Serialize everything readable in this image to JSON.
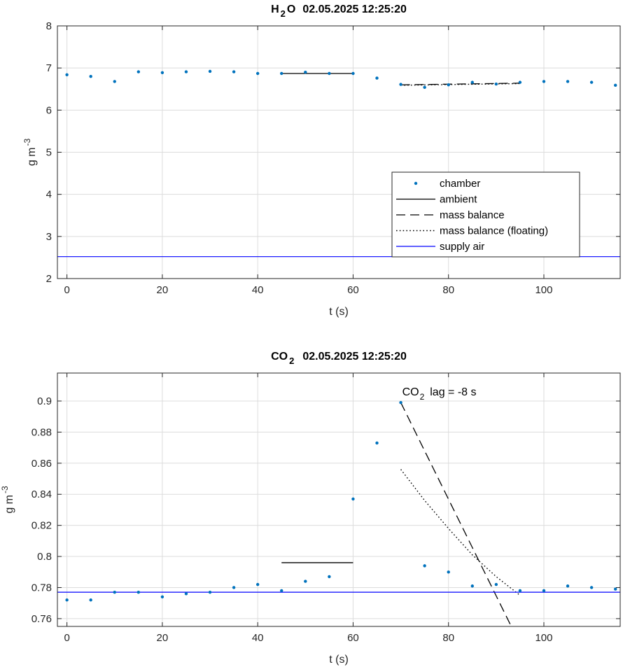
{
  "colors": {
    "chamber": "#0072BD",
    "supply_air": "#0000FF",
    "lines": "#000000",
    "grid": "#DCDCDC"
  },
  "chart_data": [
    {
      "type": "scatter",
      "title": {
        "species": "H",
        "subscript": "2",
        "suffix": "O",
        "timestamp": "02.05.2025 12:25:20"
      },
      "xlabel": "t (s)",
      "ylabel": {
        "base": "g m",
        "superscript": "-3"
      },
      "xlim": [
        -2,
        116
      ],
      "ylim": [
        2,
        8
      ],
      "xticks": [
        0,
        20,
        40,
        60,
        80,
        100
      ],
      "yticks": [
        2,
        3,
        4,
        5,
        6,
        7,
        8
      ],
      "grid": true,
      "legend": {
        "placement": "lower-right",
        "entries": [
          "chamber",
          "ambient",
          "mass balance",
          "mass balance (floating)",
          "supply air"
        ]
      },
      "series": [
        {
          "name": "chamber",
          "style": "dots",
          "x": [
            0,
            5,
            10,
            15,
            20,
            25,
            30,
            35,
            40,
            45,
            50,
            55,
            60,
            65,
            70,
            75,
            80,
            85,
            90,
            95,
            100,
            105,
            110,
            115
          ],
          "y": [
            6.84,
            6.8,
            6.68,
            6.91,
            6.89,
            6.91,
            6.92,
            6.91,
            6.87,
            6.87,
            6.9,
            6.87,
            6.87,
            6.76,
            6.61,
            6.54,
            6.6,
            6.66,
            6.62,
            6.66,
            6.68,
            6.68,
            6.66,
            6.59
          ]
        },
        {
          "name": "ambient",
          "style": "solid",
          "x": [
            45,
            60
          ],
          "y": [
            6.87,
            6.87
          ]
        },
        {
          "name": "mass balance",
          "style": "dashed",
          "x": [
            70,
            95
          ],
          "y": [
            6.6,
            6.64
          ]
        },
        {
          "name": "mass balance (floating)",
          "style": "dotted",
          "x": [
            70,
            95
          ],
          "y": [
            6.59,
            6.63
          ]
        },
        {
          "name": "supply air",
          "style": "solid-blue",
          "x": [
            -2,
            116
          ],
          "y": [
            2.52,
            2.52
          ]
        }
      ]
    },
    {
      "type": "scatter",
      "title": {
        "species": "CO",
        "subscript": "2",
        "suffix": "",
        "timestamp": "02.05.2025 12:25:20"
      },
      "xlabel": "t (s)",
      "ylabel": {
        "base": "g m",
        "superscript": "-3"
      },
      "xlim": [
        -2,
        116
      ],
      "ylim": [
        0.755,
        0.918
      ],
      "xticks": [
        0,
        20,
        40,
        60,
        80,
        100
      ],
      "yticks": [
        0.76,
        0.78,
        0.8,
        0.82,
        0.84,
        0.86,
        0.88,
        0.9
      ],
      "ytick_labels": [
        "0.76",
        "0.78",
        "0.8",
        "0.82",
        "0.84",
        "0.86",
        "0.88",
        "0.9"
      ],
      "grid": true,
      "annotation": {
        "species": "CO",
        "subscript": "2",
        "text": "lag = -8 s",
        "x": 70,
        "y": 0.9
      },
      "series": [
        {
          "name": "chamber",
          "style": "dots",
          "x": [
            0,
            5,
            10,
            15,
            20,
            25,
            30,
            35,
            40,
            45,
            50,
            55,
            60,
            65,
            70,
            75,
            80,
            85,
            90,
            95,
            100,
            105,
            110,
            115
          ],
          "y": [
            0.772,
            0.772,
            0.777,
            0.777,
            0.774,
            0.776,
            0.777,
            0.78,
            0.782,
            0.778,
            0.784,
            0.787,
            0.837,
            0.873,
            0.899,
            0.794,
            0.79,
            0.781,
            0.782,
            0.778,
            0.778,
            0.781,
            0.78,
            0.779
          ]
        },
        {
          "name": "ambient",
          "style": "solid",
          "x": [
            45,
            60
          ],
          "y": [
            0.796,
            0.796
          ]
        },
        {
          "name": "mass balance",
          "style": "dashed",
          "x": [
            70,
            93
          ],
          "y": [
            0.899,
            0.756
          ]
        },
        {
          "name": "mass balance (floating)",
          "style": "dotted",
          "x": [
            70,
            75,
            80,
            85,
            90,
            95
          ],
          "y": [
            0.856,
            0.836,
            0.818,
            0.801,
            0.787,
            0.775
          ]
        },
        {
          "name": "supply air",
          "style": "solid-blue",
          "x": [
            -2,
            116
          ],
          "y": [
            0.777,
            0.777
          ]
        }
      ]
    }
  ]
}
